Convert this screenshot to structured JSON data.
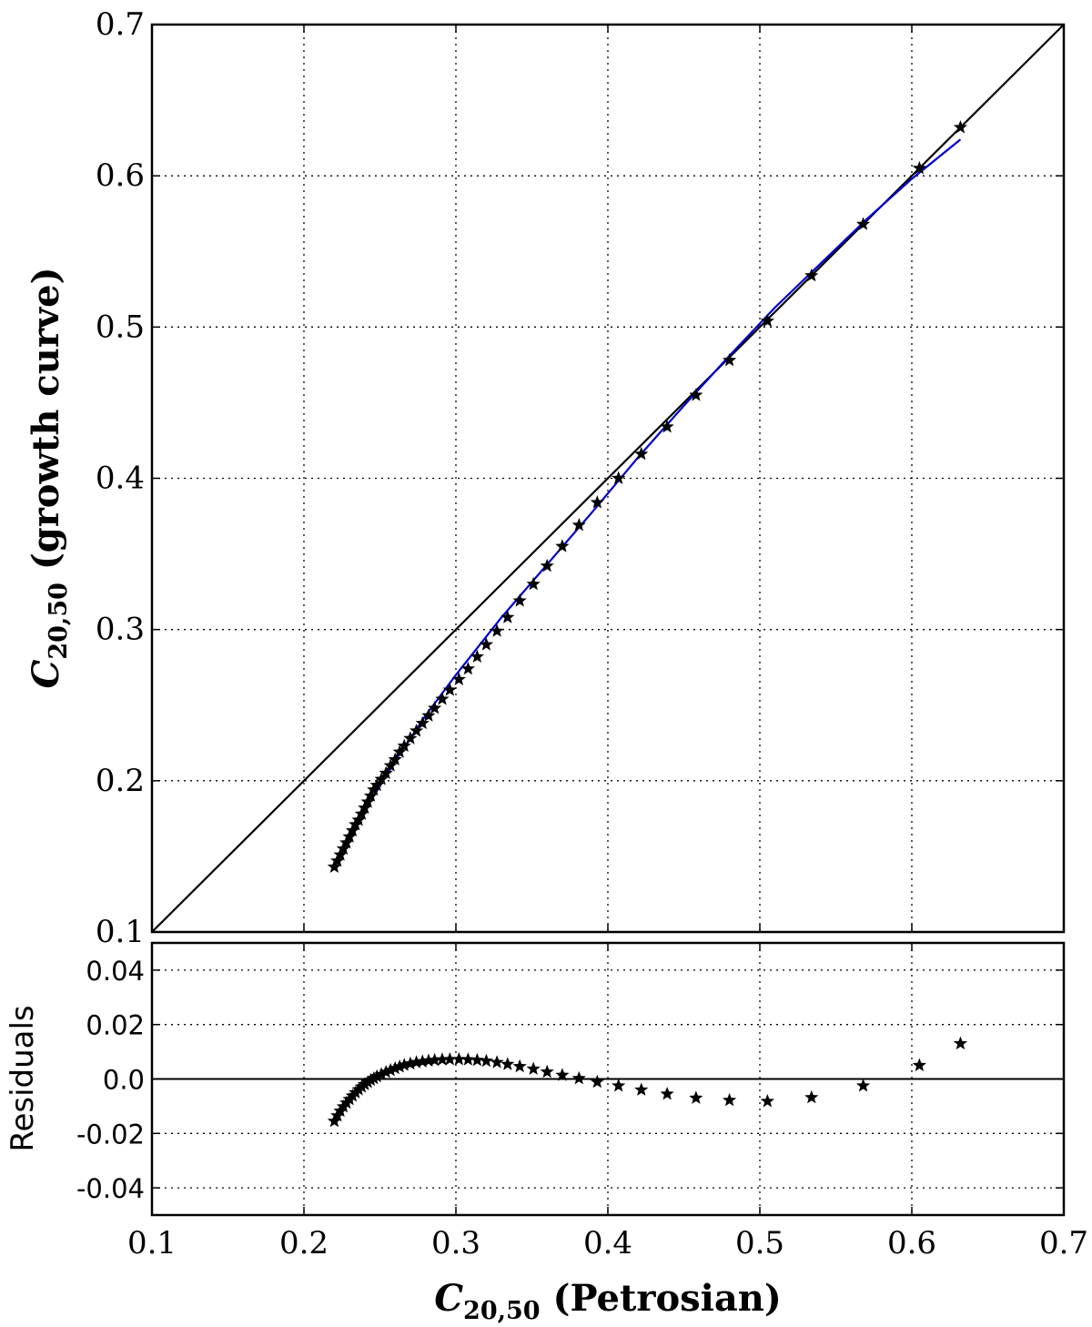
{
  "chart_data": [
    {
      "type": "scatter",
      "panel": "main",
      "xlabel": "",
      "ylabel_parts": {
        "sym": "C",
        "sub": "20,50",
        "rest": " (growth curve)"
      },
      "xlim": [
        0.1,
        0.7
      ],
      "ylim": [
        0.1,
        0.7
      ],
      "xticks": [
        0.1,
        0.2,
        0.3,
        0.4,
        0.5,
        0.6,
        0.7
      ],
      "yticks": [
        0.1,
        0.2,
        0.3,
        0.4,
        0.5,
        0.6,
        0.7
      ],
      "xtick_labels": [
        "0.1",
        "0.2",
        "0.3",
        "0.4",
        "0.5",
        "0.6",
        "0.7"
      ],
      "ytick_labels": [
        "0.1",
        "0.2",
        "0.3",
        "0.4",
        "0.5",
        "0.6",
        "0.7"
      ],
      "grid": true,
      "series": [
        {
          "kind": "points",
          "marker": "star",
          "color": "#000000",
          "x": [
            0.22,
            0.222,
            0.224,
            0.226,
            0.228,
            0.23,
            0.232,
            0.234,
            0.236,
            0.238,
            0.24,
            0.242,
            0.244,
            0.246,
            0.248,
            0.251,
            0.254,
            0.257,
            0.26,
            0.263,
            0.266,
            0.27,
            0.274,
            0.278,
            0.282,
            0.286,
            0.291,
            0.296,
            0.302,
            0.308,
            0.314,
            0.32,
            0.327,
            0.334,
            0.342,
            0.351,
            0.36,
            0.37,
            0.381,
            0.393,
            0.407,
            0.422,
            0.439,
            0.458,
            0.48,
            0.505,
            0.534,
            0.568,
            0.605,
            0.632
          ],
          "y": [
            0.143,
            0.147,
            0.151,
            0.155,
            0.159,
            0.163,
            0.167,
            0.171,
            0.174,
            0.178,
            0.182,
            0.186,
            0.19,
            0.194,
            0.197,
            0.201,
            0.205,
            0.21,
            0.214,
            0.219,
            0.223,
            0.228,
            0.233,
            0.238,
            0.243,
            0.248,
            0.254,
            0.26,
            0.267,
            0.274,
            0.282,
            0.29,
            0.299,
            0.308,
            0.319,
            0.33,
            0.342,
            0.355,
            0.369,
            0.384,
            0.4,
            0.416,
            0.434,
            0.455,
            0.478,
            0.504,
            0.534,
            0.568,
            0.605,
            0.632
          ]
        },
        {
          "kind": "line",
          "name": "",
          "color": "#000000",
          "x": [
            0.1,
            0.7
          ],
          "y": [
            0.1,
            0.7
          ]
        },
        {
          "kind": "line",
          "name": "",
          "color": "#0000cc",
          "x": [
            0.219,
            0.24,
            0.26,
            0.28,
            0.3,
            0.33,
            0.36,
            0.39,
            0.42,
            0.45,
            0.48,
            0.51,
            0.54,
            0.57,
            0.6,
            0.632
          ],
          "y": [
            0.141,
            0.18,
            0.213,
            0.243,
            0.27,
            0.308,
            0.343,
            0.378,
            0.414,
            0.448,
            0.481,
            0.513,
            0.542,
            0.571,
            0.598,
            0.624
          ]
        }
      ]
    },
    {
      "type": "scatter",
      "panel": "residuals",
      "ylabel": "Residuals",
      "xlabel_parts": {
        "sym": "C",
        "sub": "20,50",
        "rest": " (Petrosian)"
      },
      "xlim": [
        0.1,
        0.7
      ],
      "ylim": [
        -0.05,
        0.05
      ],
      "xticks": [
        0.1,
        0.2,
        0.3,
        0.4,
        0.5,
        0.6,
        0.7
      ],
      "yticks": [
        -0.04,
        -0.02,
        0.0,
        0.02,
        0.04
      ],
      "xtick_labels": [
        "0.1",
        "0.2",
        "0.3",
        "0.4",
        "0.5",
        "0.6",
        "0.7"
      ],
      "ytick_labels": [
        "-0.04",
        "-0.02",
        "0.0",
        "0.02",
        "0.04"
      ],
      "grid": true,
      "zero_line": true,
      "series": [
        {
          "kind": "points",
          "marker": "star",
          "color": "#000000",
          "x": [
            0.22,
            0.222,
            0.224,
            0.226,
            0.228,
            0.23,
            0.232,
            0.234,
            0.236,
            0.238,
            0.24,
            0.242,
            0.244,
            0.246,
            0.248,
            0.251,
            0.254,
            0.257,
            0.26,
            0.263,
            0.266,
            0.27,
            0.274,
            0.278,
            0.282,
            0.286,
            0.291,
            0.296,
            0.302,
            0.308,
            0.314,
            0.32,
            0.327,
            0.334,
            0.342,
            0.351,
            0.36,
            0.37,
            0.381,
            0.393,
            0.407,
            0.422,
            0.439,
            0.458,
            0.48,
            0.505,
            0.534,
            0.568,
            0.605,
            0.632
          ],
          "y": [
            -0.0155,
            -0.0135,
            -0.0118,
            -0.0102,
            -0.0088,
            -0.0075,
            -0.0062,
            -0.005,
            -0.0039,
            -0.0029,
            -0.002,
            -0.0012,
            -0.0004,
            0.0002,
            0.0009,
            0.0017,
            0.0025,
            0.0032,
            0.0039,
            0.0045,
            0.0051,
            0.0056,
            0.0061,
            0.0064,
            0.0067,
            0.0069,
            0.0071,
            0.0072,
            0.0072,
            0.0071,
            0.0069,
            0.0066,
            0.0061,
            0.0054,
            0.0046,
            0.0037,
            0.0026,
            0.0014,
            0.0002,
            -0.0011,
            -0.0025,
            -0.004,
            -0.0055,
            -0.007,
            -0.0078,
            -0.0082,
            -0.0068,
            -0.0025,
            0.005,
            0.013
          ]
        }
      ]
    }
  ]
}
